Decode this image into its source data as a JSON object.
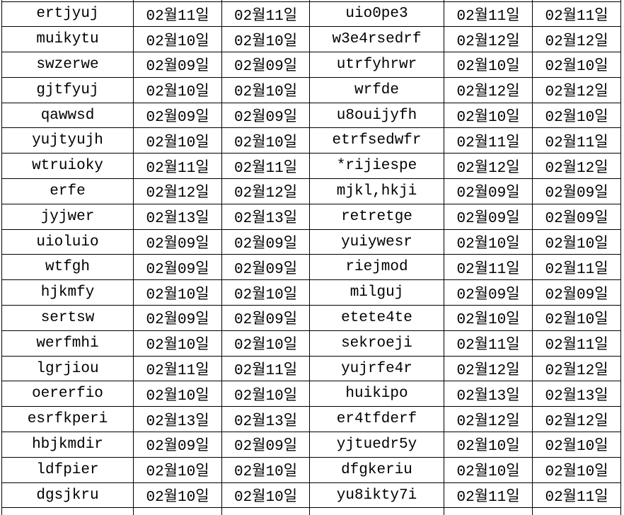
{
  "colors": {
    "background": "#ffffff",
    "grid_border": "#000000",
    "text": "#000000"
  },
  "table": {
    "rows": [
      [
        "ertjyuj",
        "02월11일",
        "02월11일",
        "uio0pe3",
        "02월11일",
        "02월11일"
      ],
      [
        "muikytu",
        "02월10일",
        "02월10일",
        "w3e4rsedrf",
        "02월12일",
        "02월12일"
      ],
      [
        "swzerwe",
        "02월09일",
        "02월09일",
        "utrfyhrwr",
        "02월10일",
        "02월10일"
      ],
      [
        "gjtfyuj",
        "02월10일",
        "02월10일",
        "wrfde",
        "02월12일",
        "02월12일"
      ],
      [
        "qawwsd",
        "02월09일",
        "02월09일",
        "u8ouijyfh",
        "02월10일",
        "02월10일"
      ],
      [
        "yujtyujh",
        "02월10일",
        "02월10일",
        "etrfsedwfr",
        "02월11일",
        "02월11일"
      ],
      [
        "wtruioky",
        "02월11일",
        "02월11일",
        "*rijiespe",
        "02월12일",
        "02월12일"
      ],
      [
        "erfe",
        "02월12일",
        "02월12일",
        "mjkl,hkji",
        "02월09일",
        "02월09일"
      ],
      [
        "jyjwer",
        "02월13일",
        "02월13일",
        "retretge",
        "02월09일",
        "02월09일"
      ],
      [
        "uioluio",
        "02월09일",
        "02월09일",
        "yuiywesr",
        "02월10일",
        "02월10일"
      ],
      [
        "wtfgh",
        "02월09일",
        "02월09일",
        "riejmod",
        "02월11일",
        "02월11일"
      ],
      [
        "hjkmfy",
        "02월10일",
        "02월10일",
        "milguj",
        "02월09일",
        "02월09일"
      ],
      [
        "sertsw",
        "02월09일",
        "02월09일",
        "etete4te",
        "02월10일",
        "02월10일"
      ],
      [
        "werfmhi",
        "02월10일",
        "02월10일",
        "sekroeji",
        "02월11일",
        "02월11일"
      ],
      [
        "lgrjiou",
        "02월11일",
        "02월11일",
        "yujrfe4r",
        "02월12일",
        "02월12일"
      ],
      [
        "oererfio",
        "02월10일",
        "02월10일",
        "huikipo",
        "02월13일",
        "02월13일"
      ],
      [
        "esrfkperi",
        "02월13일",
        "02월13일",
        "er4tfderf",
        "02월12일",
        "02월12일"
      ],
      [
        "hbjkmdir",
        "02월09일",
        "02월09일",
        "yjtuedr5y",
        "02월10일",
        "02월10일"
      ],
      [
        "ldfpier",
        "02월10일",
        "02월10일",
        "dfgkeriu",
        "02월10일",
        "02월10일"
      ],
      [
        "dgsjkru",
        "02월10일",
        "02월10일",
        "yu8ikty7i",
        "02월11일",
        "02월11일"
      ]
    ]
  }
}
